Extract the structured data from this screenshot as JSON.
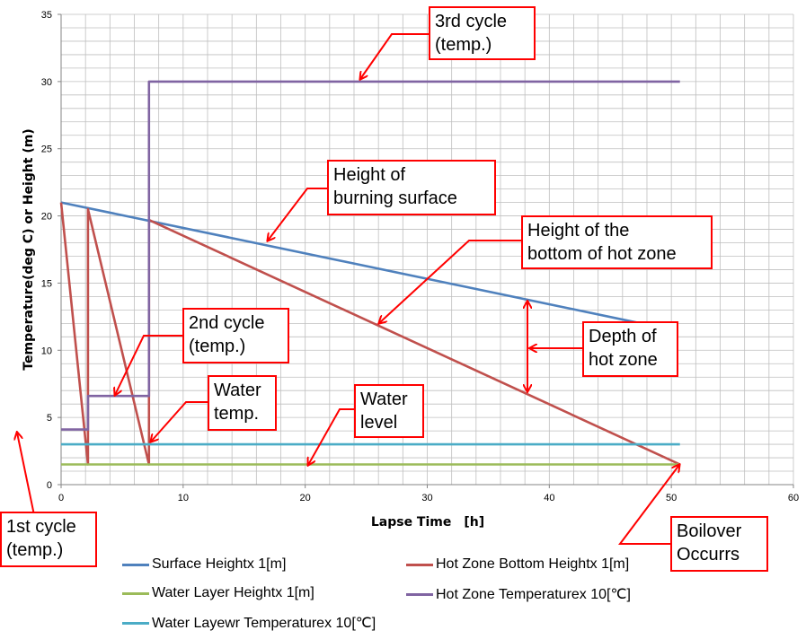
{
  "chart_data": {
    "type": "line",
    "xlabel": "Lapse Time　[h]",
    "ylabel": "Temperature(deg C) or Height (m)",
    "xlim": [
      0,
      60
    ],
    "ylim": [
      0,
      35
    ],
    "xticks": [
      0,
      10,
      20,
      30,
      40,
      50,
      60
    ],
    "yticks": [
      0,
      5,
      10,
      15,
      20,
      25,
      30,
      35
    ],
    "grid": true,
    "legend_position": "bottom",
    "series": [
      {
        "name": "Surface Heightx 1[m]",
        "color": "#4f81bd",
        "x": [
          0,
          47.5
        ],
        "y": [
          21,
          12
        ]
      },
      {
        "name": "Hot Zone Bottom Heightx 1[m]",
        "color": "#c0504d",
        "x": [
          0,
          2.2,
          2.2,
          7.2,
          7.2,
          50.7
        ],
        "y": [
          21,
          1.5,
          20.5,
          1.5,
          19.7,
          1.5
        ]
      },
      {
        "name": "Water Layer Heightx 1[m]",
        "color": "#9bbb59",
        "x": [
          0,
          50.7
        ],
        "y": [
          1.5,
          1.5
        ]
      },
      {
        "name": "Hot Zone Temperaturex 10[℃]",
        "color": "#8064a2",
        "x": [
          0,
          2.2,
          2.2,
          7.2,
          7.2,
          50.7
        ],
        "y": [
          4.1,
          4.1,
          6.6,
          6.6,
          30,
          30
        ]
      },
      {
        "name": "Water Layewr Temperaturex 10[℃]",
        "color": "#4bacc6",
        "x": [
          0,
          50.7
        ],
        "y": [
          3,
          3
        ]
      }
    ],
    "annotations": [
      {
        "text": "3rd cycle\n(temp.)"
      },
      {
        "text": "Height of\nburning surface"
      },
      {
        "text": "Height of the\nbottom of hot zone"
      },
      {
        "text": "2nd cycle\n(temp.)"
      },
      {
        "text": "Depth of\nhot zone"
      },
      {
        "text": "Water\ntemp."
      },
      {
        "text": "Water\nlevel"
      },
      {
        "text": "1st cycle\n(temp.)"
      },
      {
        "text": "Boilover\nOccurrs"
      }
    ]
  },
  "colors": {
    "annotation": "#ff0000",
    "grid": "#bfbfbf"
  }
}
